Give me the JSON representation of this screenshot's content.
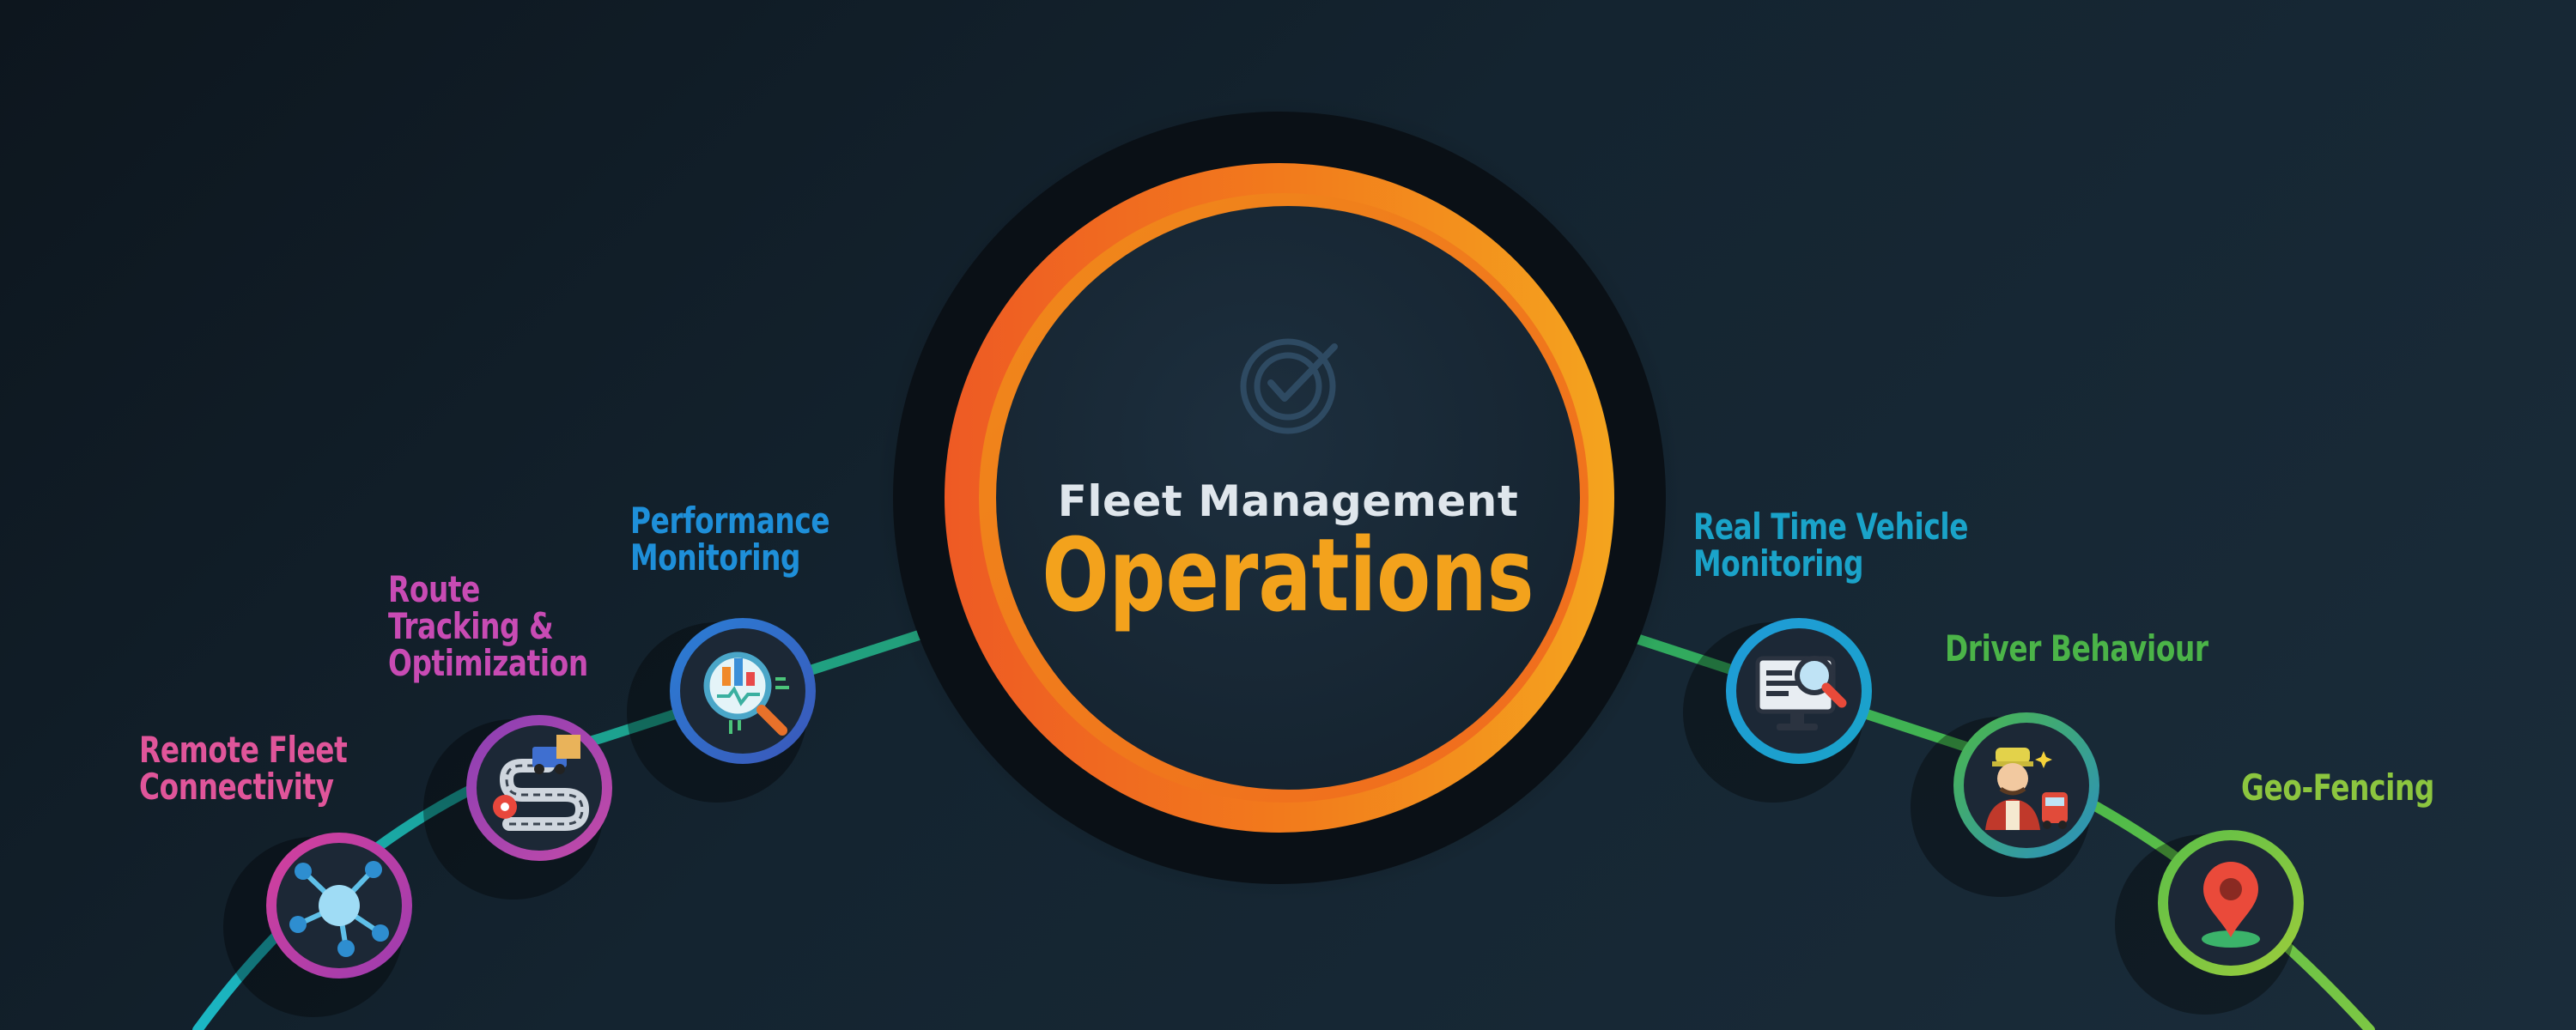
{
  "hub": {
    "title": "Fleet Management",
    "subtitle": "Operations",
    "icon": "check-circle-icon"
  },
  "colors": {
    "background": "#142430",
    "ring_orange": "#f0801e",
    "ring_red": "#ee5a24",
    "hub_title": "#dfe6ec",
    "hub_subtitle": "#f3a21c"
  },
  "features": [
    {
      "lines": [
        "Remote Fleet",
        "Connectivity"
      ],
      "color": "#e0559a",
      "icon": "network-hub-icon"
    },
    {
      "lines": [
        "Route",
        "Tracking &",
        "Optimization"
      ],
      "color": "#c84bb4",
      "icon": "route-truck-icon"
    },
    {
      "lines": [
        "Performance",
        "Monitoring"
      ],
      "color": "#1e8fd9",
      "icon": "chart-magnifier-icon"
    },
    {
      "lines": [
        "Real Time Vehicle",
        "Monitoring"
      ],
      "color": "#1aa3c9",
      "icon": "monitor-search-icon"
    },
    {
      "lines": [
        "Driver Behaviour"
      ],
      "color": "#4bb448",
      "icon": "driver-icon"
    },
    {
      "lines": [
        "Geo-Fencing"
      ],
      "color": "#8cc63f",
      "icon": "map-pin-icon"
    }
  ]
}
